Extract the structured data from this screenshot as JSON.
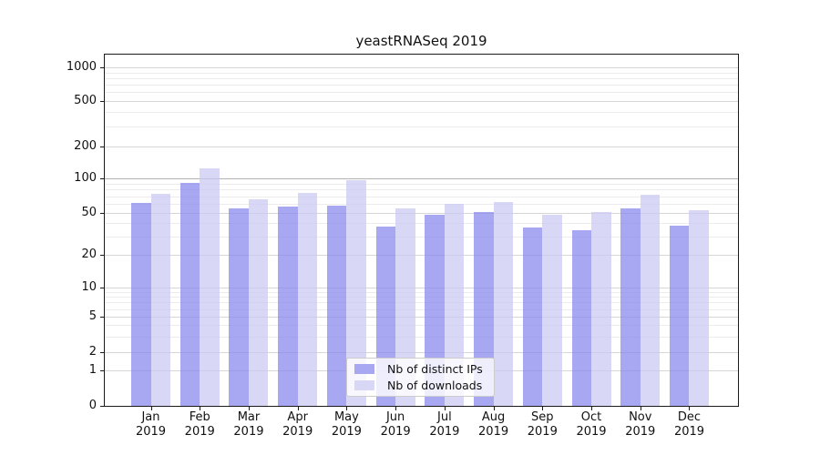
{
  "title": "yeastRNASeq 2019",
  "chart_data": {
    "type": "bar",
    "title": "yeastRNASeq 2019",
    "categories": [
      "Jan 2019",
      "Feb 2019",
      "Mar 2019",
      "Apr 2019",
      "May 2019",
      "Jun 2019",
      "Jul 2019",
      "Aug 2019",
      "Sep 2019",
      "Oct 2019",
      "Nov 2019",
      "Dec 2019"
    ],
    "series": [
      {
        "name": "Nb of distinct IPs",
        "color": "#a8a8f2",
        "fill": "rgba(134,134,237,0.72)",
        "values": [
          61,
          91,
          55,
          57,
          58,
          37,
          48,
          51,
          36,
          34,
          55,
          38
        ]
      },
      {
        "name": "Nb of downloads",
        "color": "#d8d8f6",
        "fill": "rgba(201,201,242,0.72)",
        "values": [
          74,
          124,
          66,
          75,
          96,
          55,
          60,
          62,
          48,
          51,
          72,
          53
        ]
      }
    ],
    "xlabel": "",
    "ylabel": "",
    "y_ticks": [
      0,
      1,
      2,
      5,
      10,
      20,
      50,
      100,
      200,
      500,
      1000
    ],
    "y_minor_ticks": [
      3,
      4,
      6,
      7,
      8,
      9,
      30,
      40,
      60,
      70,
      80,
      90,
      300,
      400,
      600,
      700,
      800,
      900
    ],
    "ylim": [
      0,
      1400
    ],
    "yscale": "log-like with linear segment near zero",
    "grid": true,
    "emphasized_gridline_value": 100,
    "legend_position": "inside bottom-center"
  }
}
